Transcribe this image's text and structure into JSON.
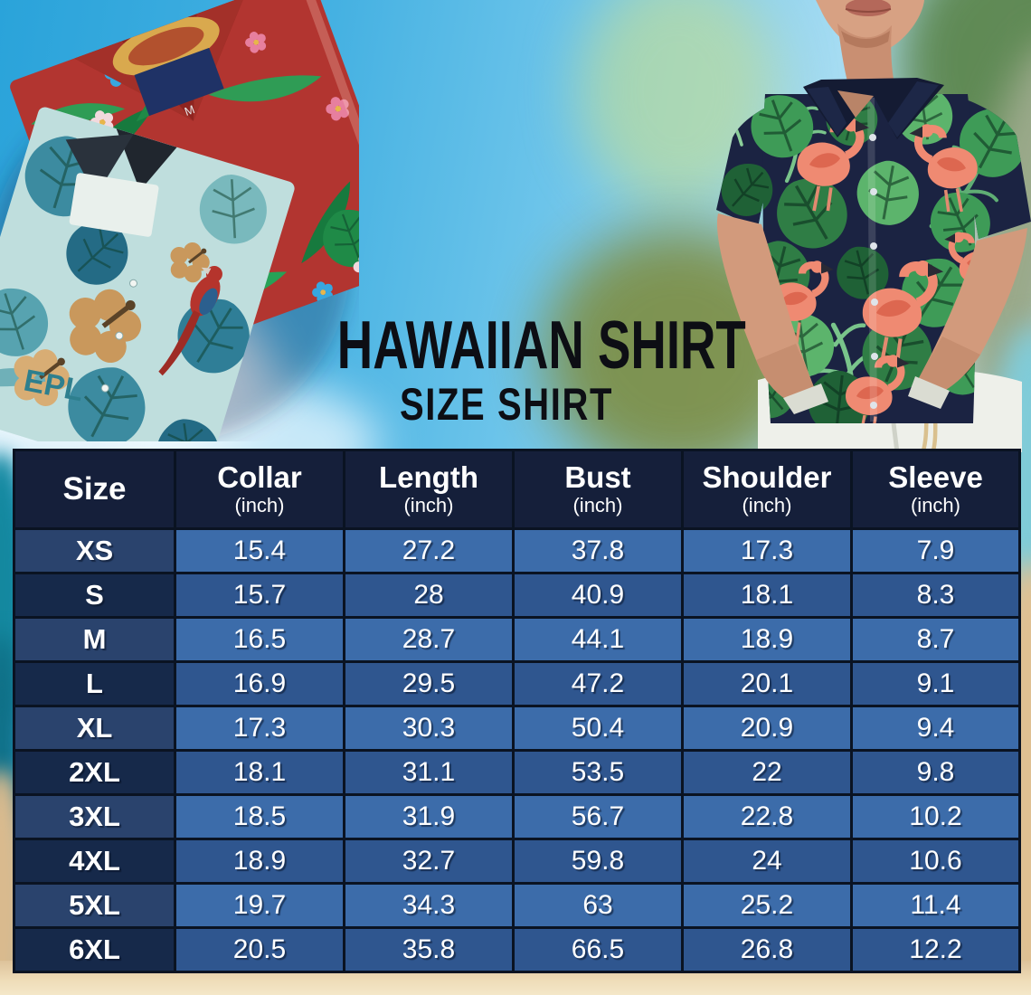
{
  "title": {
    "main": "HAWAIIAN SHIRT",
    "sub": "SIZE SHIRT"
  },
  "size_chart": {
    "columns": [
      {
        "label": "Size",
        "unit": ""
      },
      {
        "label": "Collar",
        "unit": "(inch)"
      },
      {
        "label": "Length",
        "unit": "(inch)"
      },
      {
        "label": "Bust",
        "unit": "(inch)"
      },
      {
        "label": "Shoulder",
        "unit": "(inch)"
      },
      {
        "label": "Sleeve",
        "unit": "(inch)"
      }
    ],
    "rows": [
      {
        "size": "XS",
        "values": [
          "15.4",
          "27.2",
          "37.8",
          "17.3",
          "7.9"
        ]
      },
      {
        "size": "S",
        "values": [
          "15.7",
          "28",
          "40.9",
          "18.1",
          "8.3"
        ]
      },
      {
        "size": "M",
        "values": [
          "16.5",
          "28.7",
          "44.1",
          "18.9",
          "8.7"
        ]
      },
      {
        "size": "L",
        "values": [
          "16.9",
          "29.5",
          "47.2",
          "20.1",
          "9.1"
        ]
      },
      {
        "size": "XL",
        "values": [
          "17.3",
          "30.3",
          "50.4",
          "20.9",
          "9.4"
        ]
      },
      {
        "size": "2XL",
        "values": [
          "18.1",
          "31.1",
          "53.5",
          "22",
          "9.8"
        ]
      },
      {
        "size": "3XL",
        "values": [
          "18.5",
          "31.9",
          "56.7",
          "22.8",
          "10.2"
        ]
      },
      {
        "size": "4XL",
        "values": [
          "18.9",
          "32.7",
          "59.8",
          "24",
          "10.6"
        ]
      },
      {
        "size": "5XL",
        "values": [
          "19.7",
          "34.3",
          "63",
          "25.2",
          "11.4"
        ]
      },
      {
        "size": "6XL",
        "values": [
          "20.5",
          "35.8",
          "66.5",
          "26.8",
          "12.2"
        ]
      }
    ]
  },
  "chart_data": {
    "type": "table",
    "title": "HAWAIIAN SHIRT SIZE SHIRT",
    "columns": [
      "Size",
      "Collar (inch)",
      "Length (inch)",
      "Bust (inch)",
      "Shoulder (inch)",
      "Sleeve (inch)"
    ],
    "rows": [
      [
        "XS",
        15.4,
        27.2,
        37.8,
        17.3,
        7.9
      ],
      [
        "S",
        15.7,
        28,
        40.9,
        18.1,
        8.3
      ],
      [
        "M",
        16.5,
        28.7,
        44.1,
        18.9,
        8.7
      ],
      [
        "L",
        16.9,
        29.5,
        47.2,
        20.1,
        9.1
      ],
      [
        "XL",
        17.3,
        30.3,
        50.4,
        20.9,
        9.4
      ],
      [
        "2XL",
        18.1,
        31.1,
        53.5,
        22,
        9.8
      ],
      [
        "3XL",
        18.5,
        31.9,
        56.7,
        22.8,
        10.2
      ],
      [
        "4XL",
        18.9,
        32.7,
        59.8,
        24,
        10.6
      ],
      [
        "5XL",
        19.7,
        34.3,
        63,
        25.2,
        11.4
      ],
      [
        "6XL",
        20.5,
        35.8,
        66.5,
        26.8,
        12.2
      ]
    ]
  },
  "photos": {
    "left_shirt_print_text": "EPL",
    "left_shirt_tag_letter": "M"
  },
  "colors": {
    "header_bg": "#151f3a",
    "row_light_value": "#3c6caa",
    "row_dark_value": "#2f568f",
    "row_light_size": "#2a436d",
    "row_dark_size": "#16294a",
    "table_border": "#0a1322",
    "table_text": "#ffffff",
    "title_text": "#0d0e14",
    "sky_blue": "#45b1e2",
    "sand": "#efddb9",
    "red_shirt": "#b23530",
    "teal_shirt": "#bfdedd",
    "navy_shirt": "#1b2342"
  }
}
